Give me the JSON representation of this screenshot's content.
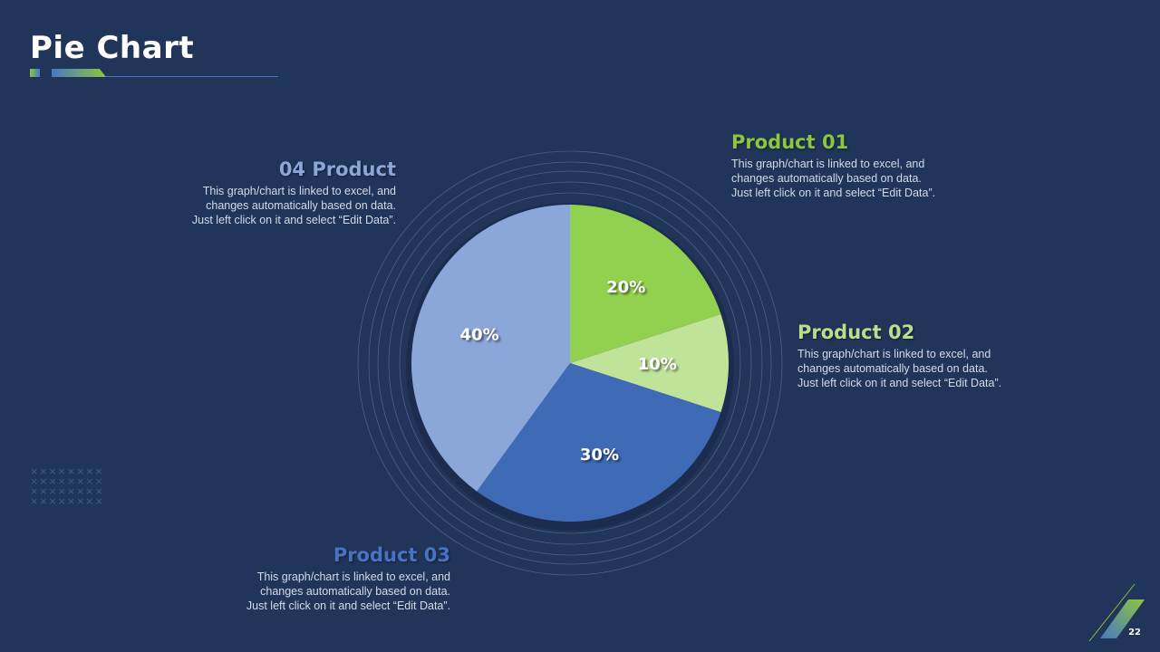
{
  "slide": {
    "title": "Pie Chart",
    "page_number": "22"
  },
  "colors": {
    "background": "#213459",
    "product_01": "#92d050",
    "product_02": "#c0e39a",
    "product_03": "#3f6bb6",
    "product_04": "#8ba6d8"
  },
  "products": [
    {
      "heading": "Product 01",
      "color": "#8dc63f",
      "text": "This graph/chart is linked to excel, and\nchanges automatically based on data.\nJust left click on it and select “Edit Data”."
    },
    {
      "heading": "Product 02",
      "color": "#b9de8e",
      "text": "This graph/chart is linked to excel, and\nchanges automatically based on data.\nJust left click on it and select “Edit Data”."
    },
    {
      "heading": "Product 03",
      "color": "#4873c4",
      "text": "This graph/chart is linked to excel, and\nchanges automatically based on data.\nJust left click on it and select “Edit Data”."
    },
    {
      "heading": "04 Product",
      "color": "#8ba6d8",
      "text": "This graph/chart is linked to excel, and\nchanges automatically based on data.\nJust left click on it and select “Edit Data”."
    }
  ],
  "chart_data": {
    "type": "pie",
    "categories": [
      "Product 01",
      "Product 02",
      "Product 03",
      "04 Product"
    ],
    "values": [
      20,
      10,
      30,
      40
    ],
    "labels": [
      "20%",
      "10%",
      "30%",
      "40%"
    ],
    "colors": [
      "#92d050",
      "#c0e39a",
      "#3f6bb6",
      "#8ba6d8"
    ]
  }
}
